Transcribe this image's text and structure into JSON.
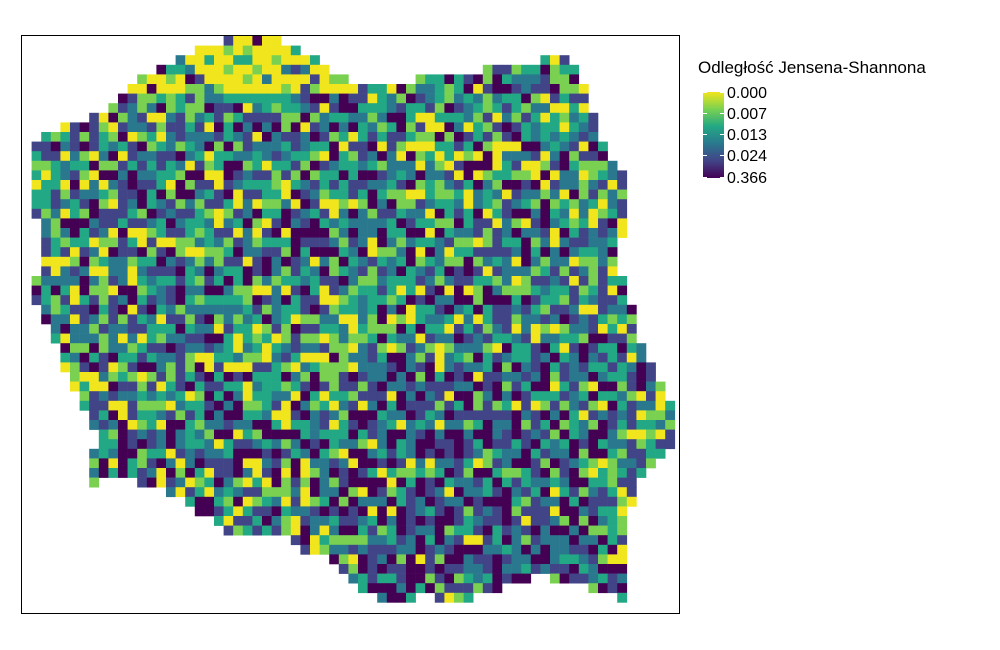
{
  "legend": {
    "title": "Odległość Jensena-Shannona",
    "labels": [
      "0.000",
      "0.007",
      "0.013",
      "0.024",
      "0.366"
    ],
    "colors": [
      "#f1e51d",
      "#7ad151",
      "#22a884",
      "#2a788e",
      "#414487",
      "#440154"
    ]
  }
}
